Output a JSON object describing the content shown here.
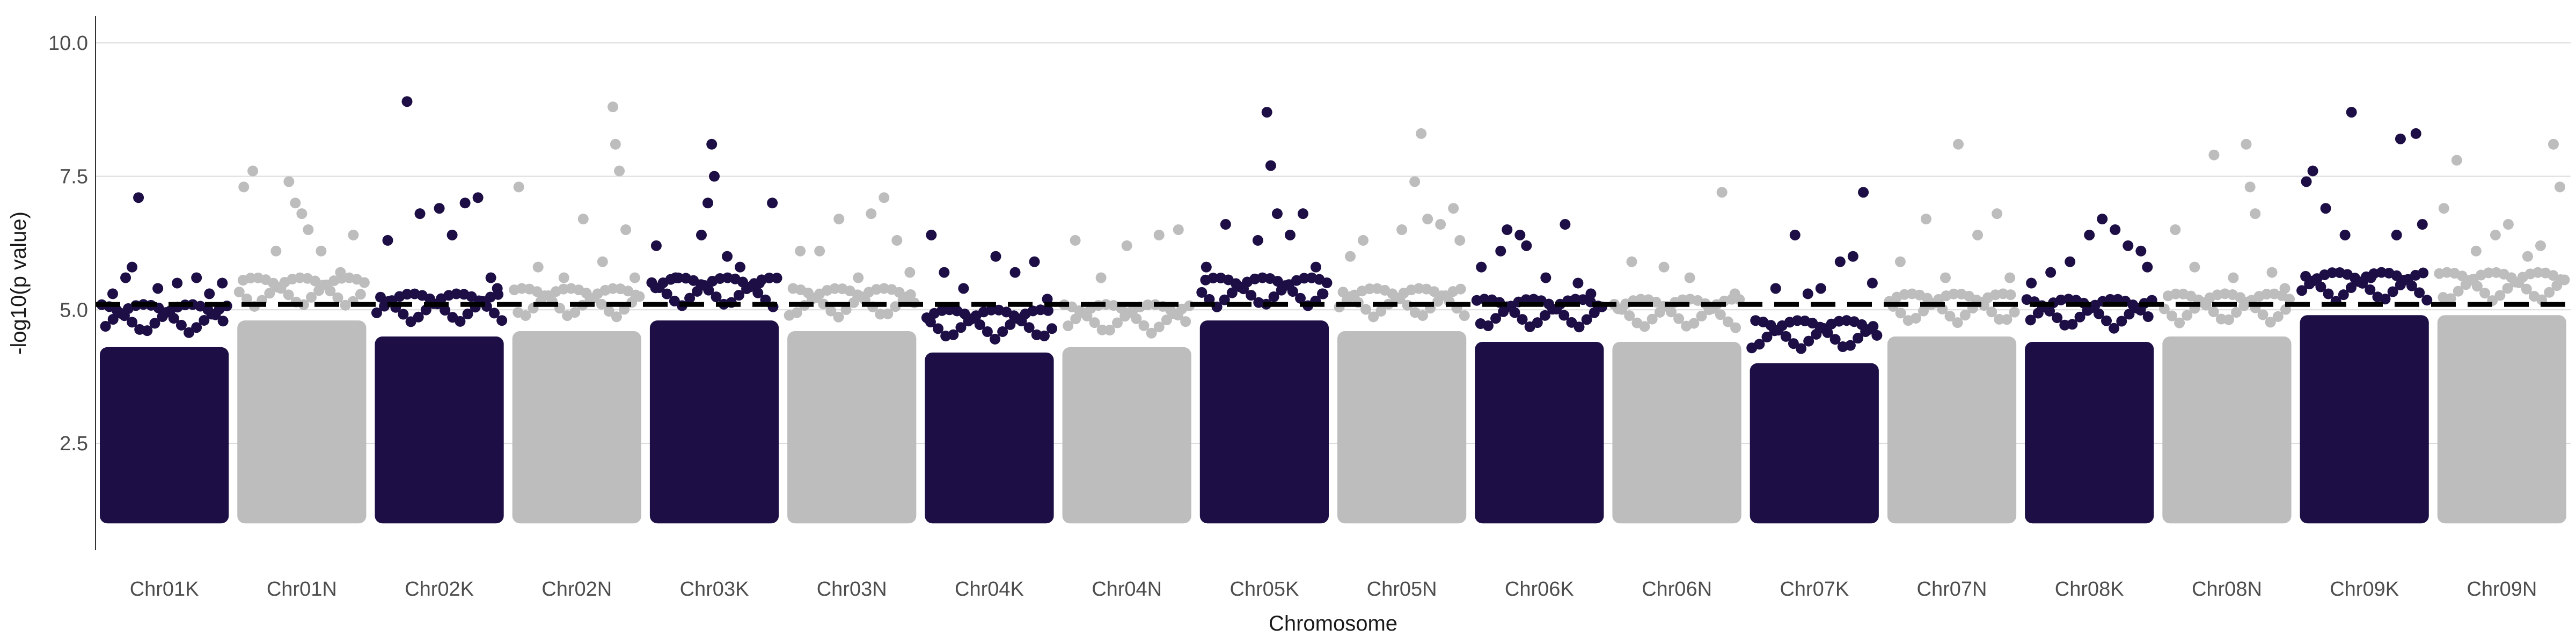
{
  "chart_data": {
    "type": "scatter",
    "title": "",
    "xlabel": "Chromosome",
    "ylabel": "-log10(p value)",
    "ylim": [
      0.5,
      10.5
    ],
    "yticks": [
      2.5,
      5.0,
      7.5,
      10.0
    ],
    "ytick_labels": [
      "2.5",
      "5.0",
      "7.5",
      "10.0"
    ],
    "threshold": 5.1,
    "grid": "horizontal major",
    "colors": {
      "dark": "#1d0f45",
      "light": "#bdbdbd",
      "threshold": "#000000"
    },
    "categories": [
      "Chr01K",
      "Chr01N",
      "Chr02K",
      "Chr02N",
      "Chr03K",
      "Chr03N",
      "Chr04K",
      "Chr04N",
      "Chr05K",
      "Chr05N",
      "Chr06K",
      "Chr06N",
      "Chr07K",
      "Chr07N",
      "Chr08K",
      "Chr08N",
      "Chr09K",
      "Chr09N"
    ],
    "series": [
      {
        "chromosome": "Chr01K",
        "color": "dark",
        "body_max": 4.3,
        "points": [
          [
            0.1,
            5.3
          ],
          [
            0.2,
            5.6
          ],
          [
            0.25,
            5.8
          ],
          [
            0.3,
            7.1
          ],
          [
            0.45,
            5.4
          ],
          [
            0.6,
            5.5
          ],
          [
            0.75,
            5.6
          ],
          [
            0.85,
            5.3
          ],
          [
            0.95,
            5.5
          ]
        ]
      },
      {
        "chromosome": "Chr01N",
        "color": "light",
        "body_max": 4.8,
        "points": [
          [
            0.05,
            7.3
          ],
          [
            0.12,
            7.6
          ],
          [
            0.3,
            6.1
          ],
          [
            0.4,
            7.4
          ],
          [
            0.45,
            7.0
          ],
          [
            0.5,
            6.8
          ],
          [
            0.55,
            6.5
          ],
          [
            0.65,
            6.1
          ],
          [
            0.8,
            5.7
          ],
          [
            0.9,
            6.4
          ]
        ]
      },
      {
        "chromosome": "Chr02K",
        "color": "dark",
        "body_max": 4.5,
        "points": [
          [
            0.1,
            6.3
          ],
          [
            0.25,
            8.9
          ],
          [
            0.35,
            6.8
          ],
          [
            0.5,
            6.9
          ],
          [
            0.6,
            6.4
          ],
          [
            0.7,
            7.0
          ],
          [
            0.8,
            7.1
          ],
          [
            0.9,
            5.6
          ],
          [
            0.95,
            5.4
          ]
        ]
      },
      {
        "chromosome": "Chr02N",
        "color": "light",
        "body_max": 4.6,
        "points": [
          [
            0.05,
            7.3
          ],
          [
            0.2,
            5.8
          ],
          [
            0.4,
            5.6
          ],
          [
            0.55,
            6.7
          ],
          [
            0.7,
            5.9
          ],
          [
            0.78,
            8.8
          ],
          [
            0.8,
            8.1
          ],
          [
            0.83,
            7.6
          ],
          [
            0.88,
            6.5
          ],
          [
            0.95,
            5.6
          ]
        ]
      },
      {
        "chromosome": "Chr03K",
        "color": "dark",
        "body_max": 4.8,
        "points": [
          [
            0.05,
            6.2
          ],
          [
            0.2,
            5.6
          ],
          [
            0.4,
            6.4
          ],
          [
            0.45,
            7.0
          ],
          [
            0.48,
            8.1
          ],
          [
            0.5,
            7.5
          ],
          [
            0.6,
            6.0
          ],
          [
            0.7,
            5.8
          ],
          [
            0.85,
            5.5
          ],
          [
            0.95,
            7.0
          ]
        ]
      },
      {
        "chromosome": "Chr03N",
        "color": "light",
        "body_max": 4.6,
        "points": [
          [
            0.1,
            6.1
          ],
          [
            0.25,
            6.1
          ],
          [
            0.4,
            6.7
          ],
          [
            0.55,
            5.6
          ],
          [
            0.65,
            6.8
          ],
          [
            0.75,
            7.1
          ],
          [
            0.85,
            6.3
          ],
          [
            0.95,
            5.7
          ]
        ]
      },
      {
        "chromosome": "Chr04K",
        "color": "dark",
        "body_max": 4.2,
        "points": [
          [
            0.05,
            6.4
          ],
          [
            0.15,
            5.7
          ],
          [
            0.3,
            5.4
          ],
          [
            0.55,
            6.0
          ],
          [
            0.7,
            5.7
          ],
          [
            0.85,
            5.9
          ],
          [
            0.95,
            5.2
          ]
        ]
      },
      {
        "chromosome": "Chr04N",
        "color": "light",
        "body_max": 4.3,
        "points": [
          [
            0.1,
            6.3
          ],
          [
            0.3,
            5.6
          ],
          [
            0.5,
            6.2
          ],
          [
            0.75,
            6.4
          ],
          [
            0.9,
            6.5
          ]
        ]
      },
      {
        "chromosome": "Chr05K",
        "color": "dark",
        "body_max": 4.8,
        "points": [
          [
            0.05,
            5.8
          ],
          [
            0.2,
            6.6
          ],
          [
            0.45,
            6.3
          ],
          [
            0.55,
            7.7
          ],
          [
            0.52,
            8.7
          ],
          [
            0.6,
            6.8
          ],
          [
            0.7,
            6.4
          ],
          [
            0.8,
            6.8
          ],
          [
            0.9,
            5.8
          ],
          [
            0.95,
            5.3
          ]
        ]
      },
      {
        "chromosome": "Chr05N",
        "color": "light",
        "body_max": 4.6,
        "points": [
          [
            0.1,
            6.0
          ],
          [
            0.2,
            6.3
          ],
          [
            0.5,
            6.5
          ],
          [
            0.6,
            7.4
          ],
          [
            0.65,
            8.3
          ],
          [
            0.7,
            6.7
          ],
          [
            0.8,
            6.6
          ],
          [
            0.9,
            6.9
          ],
          [
            0.95,
            6.3
          ]
        ]
      },
      {
        "chromosome": "Chr06K",
        "color": "dark",
        "body_max": 4.4,
        "points": [
          [
            0.05,
            5.8
          ],
          [
            0.2,
            6.1
          ],
          [
            0.25,
            6.5
          ],
          [
            0.35,
            6.4
          ],
          [
            0.4,
            6.2
          ],
          [
            0.55,
            5.6
          ],
          [
            0.7,
            6.6
          ],
          [
            0.8,
            5.5
          ],
          [
            0.9,
            5.3
          ]
        ]
      },
      {
        "chromosome": "Chr06N",
        "color": "light",
        "body_max": 4.4,
        "points": [
          [
            0.15,
            5.9
          ],
          [
            0.4,
            5.8
          ],
          [
            0.6,
            5.6
          ],
          [
            0.85,
            7.2
          ],
          [
            0.95,
            5.3
          ]
        ]
      },
      {
        "chromosome": "Chr07K",
        "color": "dark",
        "body_max": 4.0,
        "points": [
          [
            0.2,
            5.4
          ],
          [
            0.35,
            6.4
          ],
          [
            0.45,
            5.3
          ],
          [
            0.55,
            5.4
          ],
          [
            0.7,
            5.9
          ],
          [
            0.8,
            6.0
          ],
          [
            0.88,
            7.2
          ],
          [
            0.95,
            5.5
          ]
        ]
      },
      {
        "chromosome": "Chr07N",
        "color": "light",
        "body_max": 4.5,
        "points": [
          [
            0.1,
            5.9
          ],
          [
            0.3,
            6.7
          ],
          [
            0.45,
            5.6
          ],
          [
            0.55,
            8.1
          ],
          [
            0.7,
            6.4
          ],
          [
            0.85,
            6.8
          ],
          [
            0.95,
            5.6
          ]
        ]
      },
      {
        "chromosome": "Chr08K",
        "color": "dark",
        "body_max": 4.4,
        "points": [
          [
            0.05,
            5.5
          ],
          [
            0.2,
            5.7
          ],
          [
            0.35,
            5.9
          ],
          [
            0.5,
            6.4
          ],
          [
            0.6,
            6.7
          ],
          [
            0.7,
            6.5
          ],
          [
            0.8,
            6.2
          ],
          [
            0.9,
            6.1
          ],
          [
            0.95,
            5.8
          ]
        ]
      },
      {
        "chromosome": "Chr08N",
        "color": "light",
        "body_max": 4.5,
        "points": [
          [
            0.1,
            6.5
          ],
          [
            0.25,
            5.8
          ],
          [
            0.4,
            7.9
          ],
          [
            0.55,
            5.6
          ],
          [
            0.65,
            8.1
          ],
          [
            0.68,
            7.3
          ],
          [
            0.72,
            6.8
          ],
          [
            0.85,
            5.7
          ],
          [
            0.95,
            5.4
          ]
        ]
      },
      {
        "chromosome": "Chr09K",
        "color": "dark",
        "body_max": 4.9,
        "points": [
          [
            0.05,
            7.4
          ],
          [
            0.1,
            7.6
          ],
          [
            0.2,
            6.9
          ],
          [
            0.35,
            6.4
          ],
          [
            0.4,
            8.7
          ],
          [
            0.55,
            5.6
          ],
          [
            0.75,
            6.4
          ],
          [
            0.78,
            8.2
          ],
          [
            0.9,
            8.3
          ],
          [
            0.95,
            6.6
          ]
        ]
      },
      {
        "chromosome": "Chr09N",
        "color": "light",
        "body_max": 4.9,
        "points": [
          [
            0.05,
            6.9
          ],
          [
            0.15,
            7.8
          ],
          [
            0.3,
            6.1
          ],
          [
            0.45,
            6.4
          ],
          [
            0.55,
            6.6
          ],
          [
            0.7,
            6.0
          ],
          [
            0.8,
            6.2
          ],
          [
            0.9,
            8.1
          ],
          [
            0.95,
            7.3
          ]
        ]
      }
    ]
  }
}
